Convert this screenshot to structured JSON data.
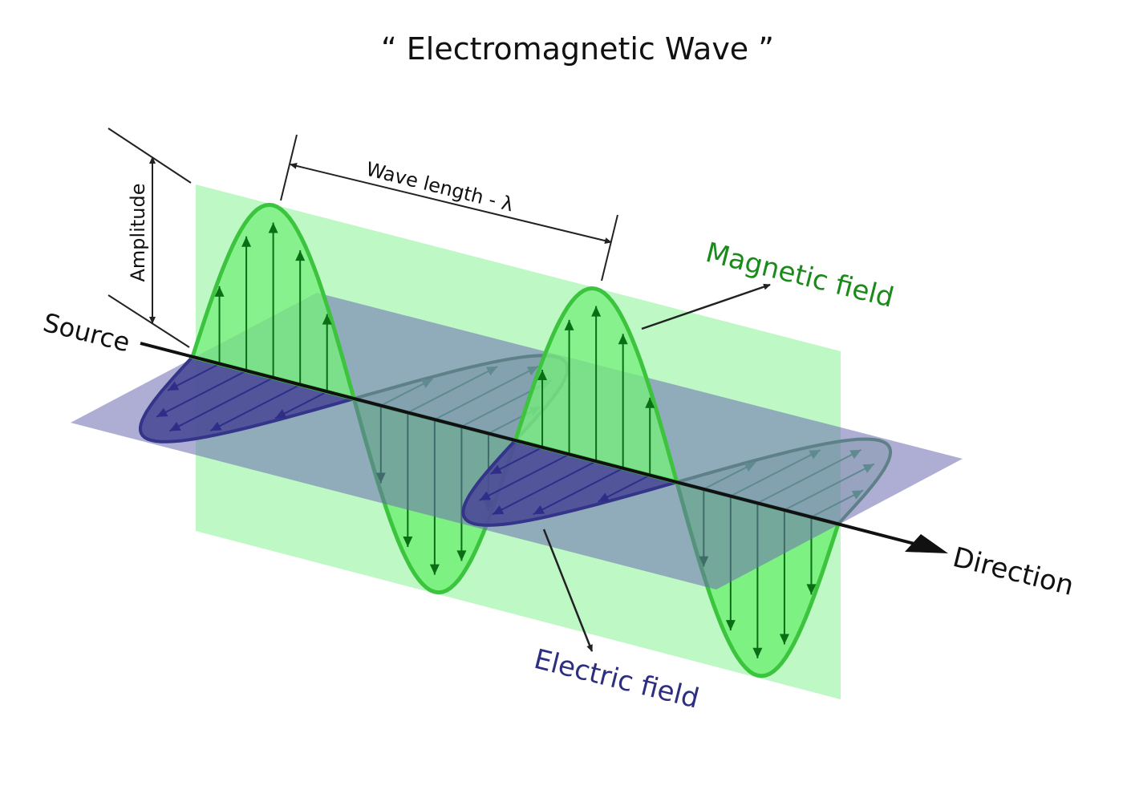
{
  "title": "“ Electromagnetic Wave ”",
  "labels": {
    "source": "Source",
    "direction": "Direction",
    "magnetic_field": "Magnetic field",
    "electric_field": "Electric field",
    "wavelength": "Wave length - λ",
    "amplitude": "Amplitude"
  },
  "colors": {
    "magnetic_plane": "#bdf8c5",
    "magnetic_wave_fill": "#75f07a",
    "magnetic_wave_stroke": "#3cc43f",
    "magnetic_arrows": "#0a6e14",
    "electric_plane": "#a5a5cc",
    "electric_wave_fill": "#4b4b97",
    "electric_wave_stroke": "#34348a",
    "magnetic_label": "#1a8a1a",
    "electric_label": "#2e2e80"
  }
}
